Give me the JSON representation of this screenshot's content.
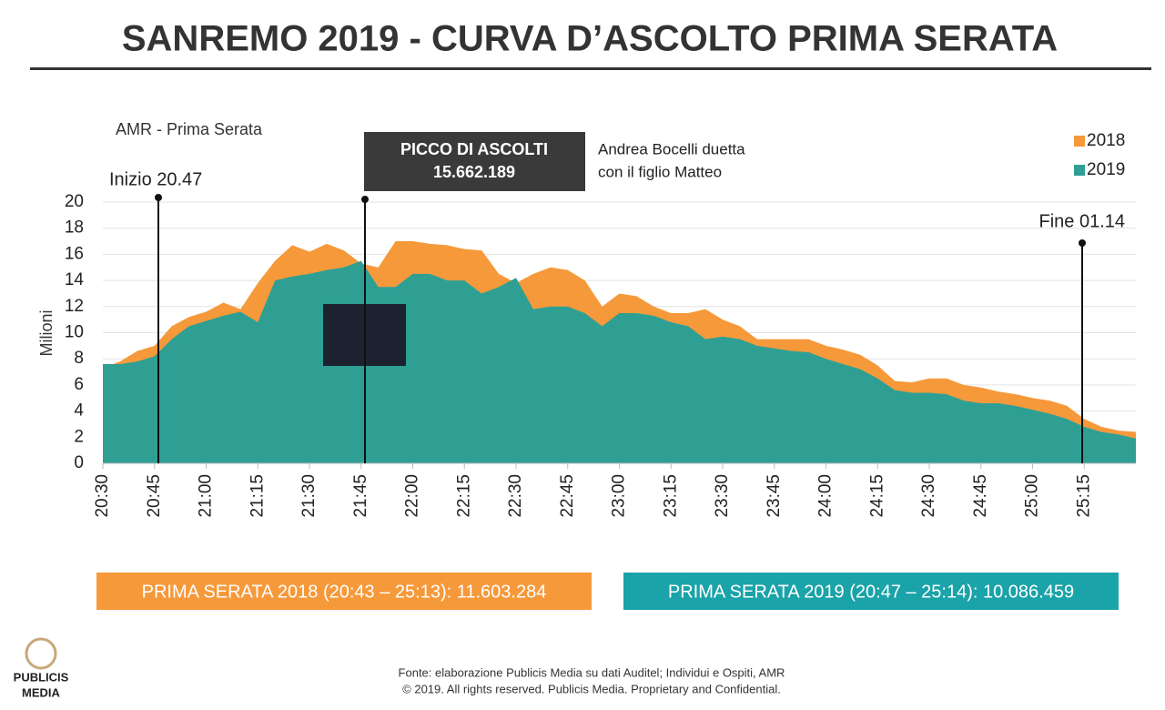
{
  "chart_data": {
    "type": "area",
    "title": "SANREMO 2019 - CURVA D’ASCOLTO PRIMA SERATA",
    "subtitle": "AMR - Prima Serata",
    "y_label": "Milioni",
    "categories": [
      "20:30",
      null,
      null,
      "20:45",
      null,
      null,
      "21:00",
      null,
      null,
      "21:15",
      null,
      null,
      "21:30",
      null,
      null,
      "21:45",
      null,
      null,
      "22:00",
      null,
      null,
      "22:15",
      null,
      null,
      "22:30",
      null,
      null,
      "22:45",
      null,
      null,
      "23:00",
      null,
      null,
      "23:15",
      null,
      null,
      "23:30",
      null,
      null,
      "23:45",
      null,
      null,
      "24:00",
      null,
      null,
      "24:15",
      null,
      null,
      "24:30",
      null,
      null,
      "24:45",
      null,
      null,
      "25:00",
      null,
      null,
      "25:15",
      null,
      null,
      null
    ],
    "series": [
      {
        "name": "2018",
        "color": "#f6993a",
        "values": [
          7.3,
          7.8,
          8.6,
          9.0,
          10.5,
          11.2,
          11.6,
          12.3,
          11.8,
          13.8,
          15.5,
          16.7,
          16.2,
          16.8,
          16.3,
          15.3,
          15.0,
          17.0,
          17.0,
          16.8,
          16.7,
          16.4,
          16.3,
          14.5,
          13.8,
          14.5,
          15.0,
          14.8,
          14.0,
          12.0,
          13.0,
          12.8,
          12.0,
          11.5,
          11.5,
          11.8,
          11.0,
          10.5,
          9.5,
          9.5,
          9.5,
          9.5,
          9.0,
          8.7,
          8.3,
          7.5,
          6.3,
          6.2,
          6.5,
          6.5,
          6.0,
          5.8,
          5.5,
          5.3,
          5.0,
          4.8,
          4.4,
          3.4,
          2.8,
          2.5,
          2.4
        ]
      },
      {
        "name": "2019",
        "color": "#2f9f94",
        "values": [
          7.6,
          7.6,
          7.8,
          8.2,
          9.5,
          10.5,
          10.9,
          11.3,
          11.6,
          10.8,
          14.0,
          14.3,
          14.5,
          14.8,
          15.0,
          15.5,
          13.5,
          13.5,
          14.5,
          14.5,
          14.0,
          14.0,
          13.0,
          13.5,
          14.2,
          11.8,
          12.0,
          12.0,
          11.5,
          10.5,
          11.5,
          11.5,
          11.3,
          10.8,
          10.5,
          9.5,
          9.7,
          9.5,
          9.0,
          8.8,
          8.6,
          8.5,
          8.0,
          7.6,
          7.2,
          6.5,
          5.6,
          5.4,
          5.4,
          5.3,
          4.8,
          4.6,
          4.6,
          4.4,
          4.1,
          3.8,
          3.4,
          2.8,
          2.4,
          2.2,
          1.9
        ]
      }
    ],
    "ylim": [
      0,
      20
    ],
    "yticks": [
      0,
      2,
      4,
      6,
      8,
      10,
      12,
      14,
      16,
      18,
      20
    ],
    "grid": true,
    "legend": "upper right",
    "annotations": [
      {
        "text": "Inizio 20.47"
      },
      {
        "text": "PICCO DI ASCOLTI",
        "value": "15.662.189"
      },
      {
        "text": "Andrea Bocelli duetta",
        "text2": "con il figlio Matteo"
      },
      {
        "text": "Fine 01.14"
      }
    ],
    "summary": [
      "PRIMA SERATA 2018 (20:43 – 25:13): 11.603.284",
      "PRIMA SERATA 2019 (20:47 – 25:14): 10.086.459"
    ],
    "source": [
      "Fonte: elaborazione Publicis Media su dati Auditel; Individui e Ospiti, AMR",
      "© 2019. All rights reserved. Publicis Media. Proprietary and Confidential."
    ],
    "logo": [
      "PUBLICIS",
      "MEDIA"
    ]
  }
}
